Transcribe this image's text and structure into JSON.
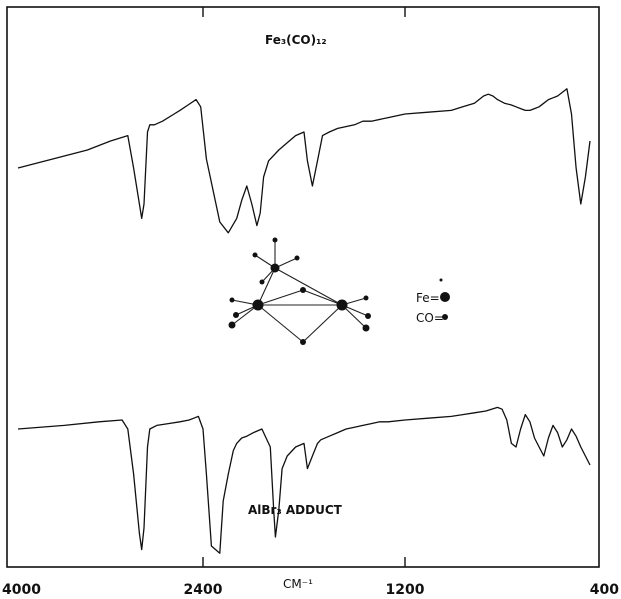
{
  "chart_data": {
    "type": "line",
    "x_unit": "CM⁻¹",
    "xlabel": "CM⁻¹",
    "x_ticks": [
      4000,
      2400,
      1200,
      400
    ],
    "x_tick_labels": [
      "4000",
      "2400",
      "1200",
      "400"
    ],
    "xlim": [
      4000,
      400
    ],
    "series": [
      {
        "name": "Fe₃(CO)₁₂",
        "x": [
          4000,
          3700,
          3400,
          3200,
          3050,
          3000,
          2950,
          2930,
          2910,
          2880,
          2860,
          2820,
          2750,
          2650,
          2600,
          2530,
          2460,
          2420,
          2380,
          2300,
          2250,
          2200,
          2170,
          2140,
          2110,
          2080,
          2060,
          2040,
          2010,
          1950,
          1900,
          1850,
          1800,
          1780,
          1750,
          1720,
          1690,
          1650,
          1600,
          1500,
          1450,
          1400,
          1300,
          1200,
          1100,
          1000,
          950,
          900,
          880,
          860,
          840,
          820,
          800,
          770,
          740,
          720,
          700,
          680,
          660,
          640,
          620,
          600,
          580,
          560,
          540,
          520,
          500,
          480,
          460,
          440,
          420,
          400
        ],
        "y": [
          40,
          45,
          50,
          55,
          58,
          40,
          20,
          12,
          20,
          60,
          64,
          64,
          66,
          70,
          72,
          75,
          78,
          74,
          45,
          10,
          4,
          12,
          22,
          30,
          20,
          8,
          15,
          35,
          44,
          50,
          54,
          58,
          60,
          44,
          30,
          44,
          58,
          60,
          62,
          64,
          66,
          66,
          68,
          70,
          71,
          72,
          74,
          76,
          78,
          80,
          81,
          80,
          78,
          76,
          75,
          74,
          73,
          72,
          72,
          73,
          74,
          76,
          78,
          79,
          80,
          82,
          84,
          70,
          40,
          20,
          35,
          55
        ]
      },
      {
        "name": "AlBr₃ ADDUCT",
        "x": [
          4000,
          3600,
          3300,
          3100,
          3050,
          3000,
          2950,
          2930,
          2910,
          2880,
          2860,
          2800,
          2700,
          2600,
          2520,
          2480,
          2440,
          2400,
          2380,
          2350,
          2300,
          2280,
          2250,
          2220,
          2200,
          2170,
          2140,
          2100,
          2050,
          2000,
          1980,
          1970,
          1950,
          1930,
          1900,
          1850,
          1800,
          1780,
          1750,
          1720,
          1700,
          1650,
          1600,
          1550,
          1500,
          1450,
          1400,
          1350,
          1300,
          1200,
          1100,
          1000,
          950,
          900,
          850,
          800,
          780,
          760,
          740,
          720,
          700,
          680,
          660,
          640,
          620,
          600,
          580,
          560,
          540,
          520,
          500,
          480,
          460,
          440,
          420,
          400
        ],
        "y": [
          70,
          72,
          74,
          75,
          70,
          45,
          12,
          3,
          15,
          60,
          70,
          72,
          73,
          74,
          75,
          76,
          77,
          70,
          45,
          5,
          1,
          30,
          45,
          58,
          62,
          65,
          66,
          68,
          70,
          60,
          25,
          10,
          25,
          48,
          55,
          60,
          62,
          48,
          55,
          62,
          64,
          66,
          68,
          70,
          71,
          72,
          73,
          74,
          74,
          75,
          76,
          77,
          78,
          79,
          80,
          82,
          81,
          75,
          62,
          60,
          70,
          78,
          74,
          65,
          60,
          55,
          65,
          72,
          68,
          60,
          64,
          70,
          66,
          60,
          55,
          50
        ]
      }
    ],
    "annotations": [
      {
        "label": "Fe₃(CO)₁₂",
        "role": "series-label"
      },
      {
        "label": "AlBr₃ ADDUCT",
        "role": "series-label"
      },
      {
        "label": "Fe=",
        "role": "legend"
      },
      {
        "label": "CO=",
        "role": "legend"
      }
    ],
    "grid": false,
    "legend": "center-right"
  }
}
